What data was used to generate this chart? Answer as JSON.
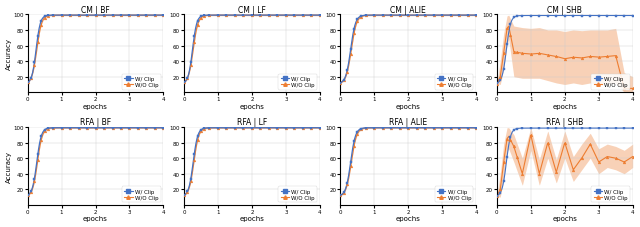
{
  "titles": [
    [
      "CM | BF",
      "CM | LF",
      "CM | ALIE",
      "CM | SHB"
    ],
    [
      "RFA | BF",
      "RFA | LF",
      "RFA | ALIE",
      "RFA | SHB"
    ]
  ],
  "xlabel": "epochs",
  "ylabel": "Accuracy",
  "xlim": [
    0,
    4
  ],
  "ylim": [
    0,
    100
  ],
  "yticks": [
    20,
    40,
    60,
    80,
    100
  ],
  "xticks": [
    0,
    1,
    2,
    3,
    4
  ],
  "blue_color": "#4472C4",
  "orange_color": "#ED7D31",
  "legend_labels": [
    "W/ Clip",
    "W/O Clip"
  ],
  "cm_shb_orange_x": [
    0.0,
    0.1,
    0.2,
    0.3,
    0.35,
    0.5,
    0.75,
    1.0,
    1.25,
    1.5,
    1.75,
    2.0,
    2.25,
    2.5,
    2.75,
    3.0,
    3.25,
    3.5,
    3.75,
    4.0
  ],
  "cm_shb_orange_mean": [
    11,
    20,
    50,
    82,
    85,
    52,
    50,
    49,
    50,
    48,
    46,
    43,
    45,
    44,
    46,
    45,
    46,
    47,
    5,
    5
  ],
  "cm_shb_orange_lo": [
    11,
    10,
    30,
    60,
    68,
    20,
    18,
    18,
    18,
    15,
    12,
    10,
    12,
    10,
    12,
    10,
    12,
    12,
    0,
    0
  ],
  "cm_shb_orange_hi": [
    11,
    40,
    75,
    98,
    99,
    85,
    83,
    82,
    83,
    80,
    80,
    78,
    80,
    79,
    80,
    80,
    80,
    82,
    25,
    20
  ],
  "rfa_shb_orange_x": [
    0.0,
    0.1,
    0.2,
    0.3,
    0.35,
    0.5,
    0.75,
    1.0,
    1.25,
    1.5,
    1.75,
    2.0,
    2.25,
    2.5,
    2.75,
    3.0,
    3.25,
    3.5,
    3.75,
    4.0
  ],
  "rfa_shb_orange_mean": [
    11,
    20,
    55,
    85,
    88,
    75,
    40,
    90,
    40,
    80,
    42,
    80,
    45,
    60,
    78,
    55,
    62,
    60,
    55,
    62
  ],
  "rfa_shb_orange_lo": [
    11,
    10,
    35,
    68,
    72,
    55,
    25,
    70,
    25,
    60,
    28,
    60,
    30,
    45,
    60,
    40,
    48,
    45,
    40,
    48
  ],
  "rfa_shb_orange_hi": [
    11,
    40,
    78,
    99,
    99,
    90,
    60,
    99,
    58,
    95,
    58,
    95,
    62,
    78,
    92,
    72,
    78,
    75,
    70,
    78
  ]
}
